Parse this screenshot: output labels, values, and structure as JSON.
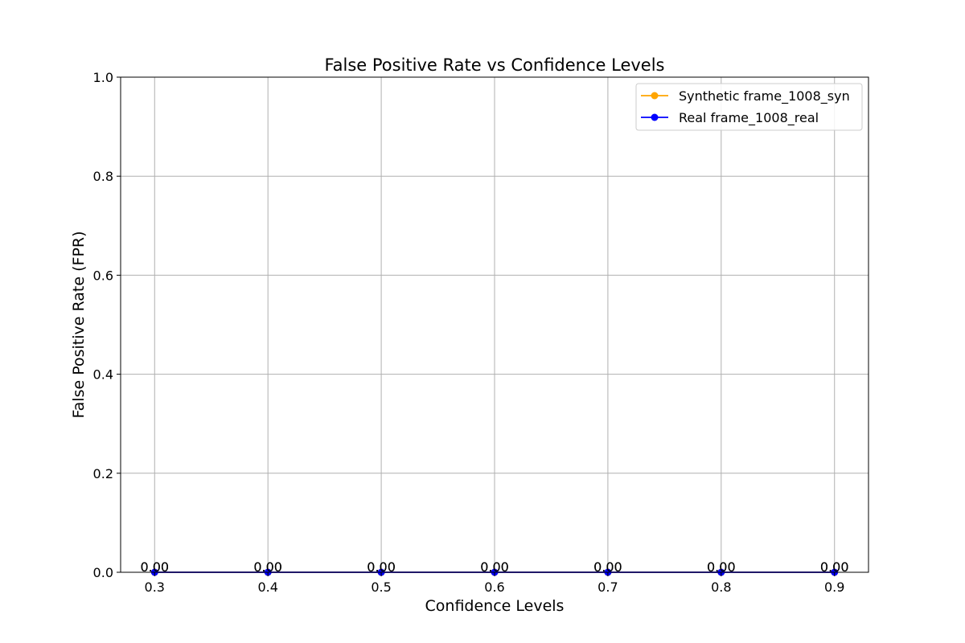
{
  "chart_data": {
    "type": "line",
    "title": "False Positive Rate vs Confidence Levels",
    "xlabel": "Confidence Levels",
    "ylabel": "False Positive Rate (FPR)",
    "x": [
      0.3,
      0.4,
      0.5,
      0.6,
      0.7,
      0.8,
      0.9
    ],
    "x_ticks": [
      "0.3",
      "0.4",
      "0.5",
      "0.6",
      "0.7",
      "0.8",
      "0.9"
    ],
    "y_ticks": [
      "0.0",
      "0.2",
      "0.4",
      "0.6",
      "0.8",
      "1.0"
    ],
    "xlim": [
      0.27,
      0.93
    ],
    "ylim": [
      0,
      1
    ],
    "grid": true,
    "legend_position": "top-right",
    "series": [
      {
        "name": "Synthetic frame_1008_syn",
        "color": "#ffa500",
        "marker": "circle",
        "values": [
          0,
          0,
          0,
          0,
          0,
          0,
          0
        ],
        "labels": [
          "0.00",
          "0.00",
          "0.00",
          "0.00",
          "0.00",
          "0.00",
          "0.00"
        ]
      },
      {
        "name": "Real frame_1008_real",
        "color": "#0000ff",
        "marker": "circle",
        "values": [
          0,
          0,
          0,
          0,
          0,
          0,
          0
        ],
        "labels": [
          "0.00",
          "0.00",
          "0.00",
          "0.00",
          "0.00",
          "0.00",
          "0.00"
        ]
      }
    ]
  }
}
